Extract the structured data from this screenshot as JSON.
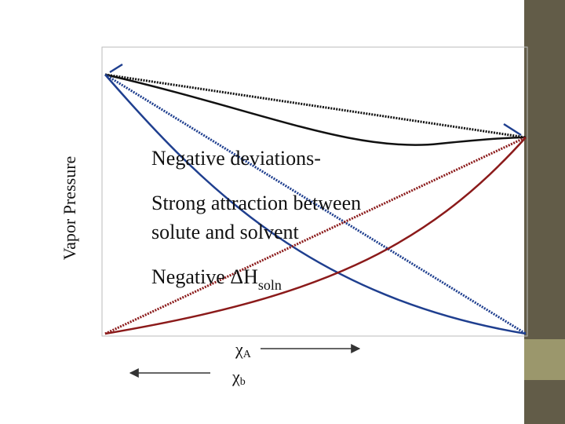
{
  "axis_label": "Vapor Pressure",
  "heading": "Negative deviations-",
  "body_lines": [
    "Strong attraction between",
    "solute and solvent"
  ],
  "enthalpy": {
    "text": "Negative ΔH",
    "subscript": "soln"
  },
  "x_labels": [
    {
      "symbol": "χ",
      "subscript": "A"
    },
    {
      "symbol": "χ",
      "subscript": "b"
    }
  ]
}
